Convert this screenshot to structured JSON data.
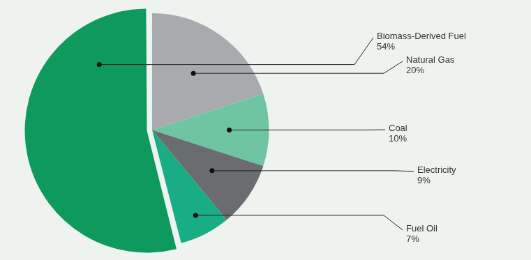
{
  "chart_data": {
    "type": "pie",
    "categories": [
      "Biomass-Derived Fuel",
      "Natural Gas",
      "Coal",
      "Electricity",
      "Fuel Oil"
    ],
    "values": [
      54,
      20,
      10,
      9,
      7
    ],
    "value_labels": [
      "54%",
      "20%",
      "10%",
      "9%",
      "7%"
    ],
    "colors": [
      "#0e9a5c",
      "#a8aaad",
      "#6fc4a2",
      "#6b6c6f",
      "#18ad85"
    ],
    "data_labels": true
  }
}
